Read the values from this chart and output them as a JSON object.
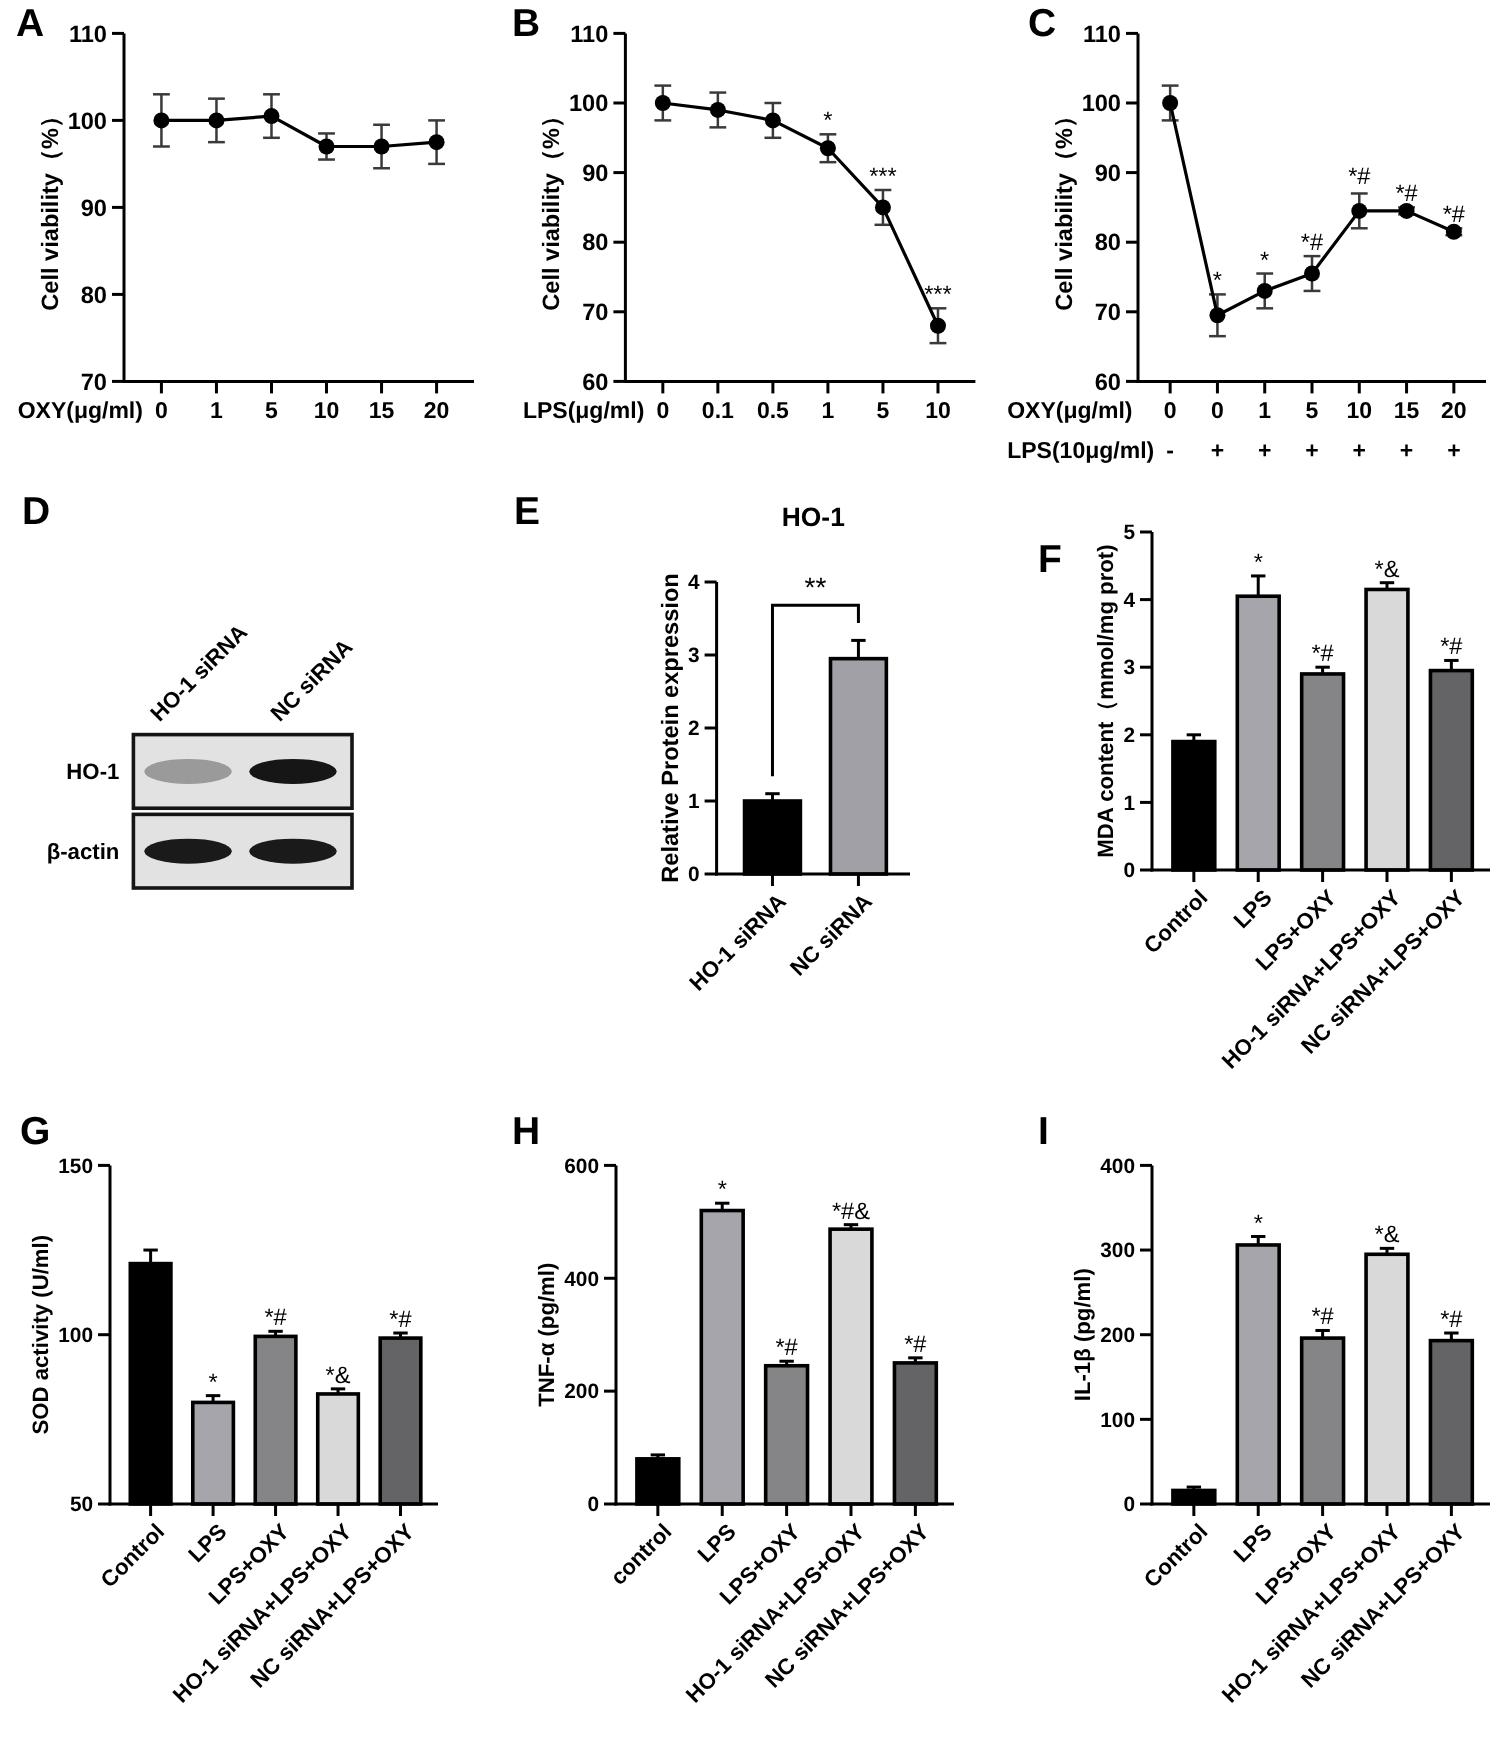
{
  "chart_data": [
    {
      "type": "line",
      "annotations": [
        "A"
      ],
      "xlabel": "OXY(μg/ml)",
      "ylabel": "Cell viability（%）",
      "categories": [
        "0",
        "1",
        "5",
        "10",
        "15",
        "20"
      ],
      "values": [
        100,
        100,
        100.5,
        97,
        97,
        97.5
      ],
      "errors": [
        3,
        2.5,
        2.5,
        1.5,
        2.5,
        2.5
      ],
      "color": "#000000",
      "marker": "circle",
      "line_style": "solid",
      "ylim": [
        70,
        110
      ],
      "yticks": [
        70,
        80,
        90,
        100,
        110
      ]
    },
    {
      "type": "line",
      "annotations": [
        "B",
        {
          "text": "*",
          "x": "1",
          "y": 95.5
        },
        {
          "text": "***",
          "x": "5",
          "y": 87.5
        },
        {
          "text": "***",
          "x": "10",
          "y": 70.5
        }
      ],
      "xlabel": "LPS(μg/ml)",
      "ylabel": "Cell viability（%）",
      "categories": [
        "0",
        "0.1",
        "0.5",
        "1",
        "5",
        "10"
      ],
      "values": [
        100,
        99,
        97.5,
        93.5,
        85,
        68
      ],
      "errors": [
        2.5,
        2.5,
        2.5,
        2,
        2.5,
        2.5
      ],
      "color": "#000000",
      "marker": "circle",
      "line_style": "solid",
      "ylim": [
        60,
        110
      ],
      "yticks": [
        60,
        70,
        80,
        90,
        100,
        110
      ]
    },
    {
      "type": "line",
      "annotations": [
        "C",
        {
          "text": "*",
          "x": "0\n+",
          "y": 72.5
        },
        {
          "text": "*",
          "x": "1\n+",
          "y": 75.5
        },
        {
          "text": "*#",
          "x": "5\n+",
          "y": 78
        },
        {
          "text": "*#",
          "x": "10\n+",
          "y": 87.5
        },
        {
          "text": "*#",
          "x": "15\n+",
          "y": 85
        },
        {
          "text": "*#",
          "x": "20\n+",
          "y": 82
        }
      ],
      "xlabel": "OXY(μg/ml)\nLPS(10μg/ml)",
      "ylabel": "Cell viability（%）",
      "categories": [
        "0\n-",
        "0\n+",
        "1\n+",
        "5\n+",
        "10\n+",
        "15\n+",
        "20\n+"
      ],
      "values": [
        100,
        69.5,
        73,
        75.5,
        84.5,
        84.5,
        81.5
      ],
      "errors": [
        2.5,
        3,
        2.5,
        2.5,
        2.5,
        0.5,
        0.5
      ],
      "color": "#000000",
      "marker": "circle",
      "line_style": "solid",
      "ylim": [
        60,
        110
      ],
      "yticks": [
        60,
        70,
        80,
        90,
        100,
        110
      ]
    },
    {
      "type": "other",
      "annotations": [
        "D",
        "HO-1 siRNA",
        "NC siRNA",
        "HO-1",
        "β-actin"
      ]
    },
    {
      "type": "bar",
      "title": "HO-1",
      "annotations": [
        "E",
        "**"
      ],
      "ylabel": "Relative Protein expression",
      "categories": [
        "HO-1 siRNA",
        "NC siRNA"
      ],
      "values": [
        1,
        2.95
      ],
      "errors": [
        0.1,
        0.25
      ],
      "colors": [
        "#000000",
        "#a0a0a6"
      ],
      "ylim": [
        0,
        4
      ],
      "yticks": [
        0,
        1,
        2,
        3,
        4
      ]
    },
    {
      "type": "bar",
      "annotations": [
        "F",
        {
          "text": "*",
          "x": "LPS",
          "y": 4.35
        },
        {
          "text": "*#",
          "x": "LPS+OXY",
          "y": 3.0
        },
        {
          "text": "*&",
          "x": "HO-1 siRNA+LPS+OXY",
          "y": 4.25
        },
        {
          "text": "*#",
          "x": "NC siRNA+LPS+OXY",
          "y": 3.1
        }
      ],
      "ylabel": "MDA content（mmol/mg prot)",
      "categories": [
        "Control",
        "LPS",
        "LPS+OXY",
        "HO-1 siRNA+LPS+OXY",
        "NC siRNA+LPS+OXY"
      ],
      "values": [
        1.9,
        4.05,
        2.9,
        4.15,
        2.95
      ],
      "errors": [
        0.1,
        0.3,
        0.1,
        0.1,
        0.15
      ],
      "colors": [
        "#000000",
        "#a5a5ab",
        "#858587",
        "#d9d9d9",
        "#646466"
      ],
      "ylim": [
        0,
        5
      ],
      "yticks": [
        0,
        1,
        2,
        3,
        4,
        5
      ]
    },
    {
      "type": "bar",
      "annotations": [
        "G",
        {
          "text": "*",
          "x": "LPS",
          "y": 82
        },
        {
          "text": "*#",
          "x": "LPS+OXY",
          "y": 101
        },
        {
          "text": "*&",
          "x": "HO-1 siRNA+LPS+OXY",
          "y": 84
        },
        {
          "text": "*#",
          "x": "NC siRNA+LPS+OXY",
          "y": 100.5
        }
      ],
      "ylabel": "SOD activity (U/ml)",
      "categories": [
        "Control",
        "LPS",
        "LPS+OXY",
        "HO-1 siRNA+LPS+OXY",
        "NC siRNA+LPS+OXY"
      ],
      "values": [
        121,
        80,
        99.5,
        82.5,
        99
      ],
      "errors": [
        4,
        2,
        1.5,
        1.5,
        1.5
      ],
      "colors": [
        "#000000",
        "#a5a5ab",
        "#858587",
        "#d9d9d9",
        "#646466"
      ],
      "ylim": [
        50,
        150
      ],
      "yticks": [
        50,
        100,
        150
      ]
    },
    {
      "type": "bar",
      "annotations": [
        "H",
        {
          "text": "*",
          "x": "LPS",
          "y": 533
        },
        {
          "text": "*#",
          "x": "LPS+OXY",
          "y": 253
        },
        {
          "text": "*#&",
          "x": "HO-1 siRNA+LPS+OXY",
          "y": 495
        },
        {
          "text": "*#",
          "x": "NC siRNA+LPS+OXY",
          "y": 259
        }
      ],
      "ylabel": "TNF-α (pg/ml)",
      "categories": [
        "control",
        "LPS",
        "LPS+OXY",
        "HO-1 siRNA+LPS+OXY",
        "NC siRNA+LPS+OXY"
      ],
      "values": [
        80,
        520,
        245,
        487,
        250
      ],
      "errors": [
        7,
        13,
        8,
        8,
        9
      ],
      "colors": [
        "#000000",
        "#a5a5ab",
        "#858587",
        "#d9d9d9",
        "#646466"
      ],
      "ylim": [
        0,
        600
      ],
      "yticks": [
        0,
        200,
        400,
        600
      ]
    },
    {
      "type": "bar",
      "annotations": [
        "I",
        {
          "text": "*",
          "x": "LPS",
          "y": 316
        },
        {
          "text": "*#",
          "x": "LPS+OXY",
          "y": 205
        },
        {
          "text": "*&",
          "x": "HO-1 siRNA+LPS+OXY",
          "y": 302
        },
        {
          "text": "*#",
          "x": "NC siRNA+LPS+OXY",
          "y": 202
        }
      ],
      "ylabel": "IL-1β (pg/ml)",
      "categories": [
        "Control",
        "LPS",
        "LPS+OXY",
        "HO-1 siRNA+LPS+OXY",
        "NC siRNA+LPS+OXY"
      ],
      "values": [
        16,
        306,
        196,
        295,
        193
      ],
      "errors": [
        4,
        10,
        9,
        7,
        9
      ],
      "colors": [
        "#000000",
        "#a5a5ab",
        "#858587",
        "#d9d9d9",
        "#646466"
      ],
      "ylim": [
        0,
        400
      ],
      "yticks": [
        0,
        100,
        200,
        300,
        400
      ]
    }
  ]
}
